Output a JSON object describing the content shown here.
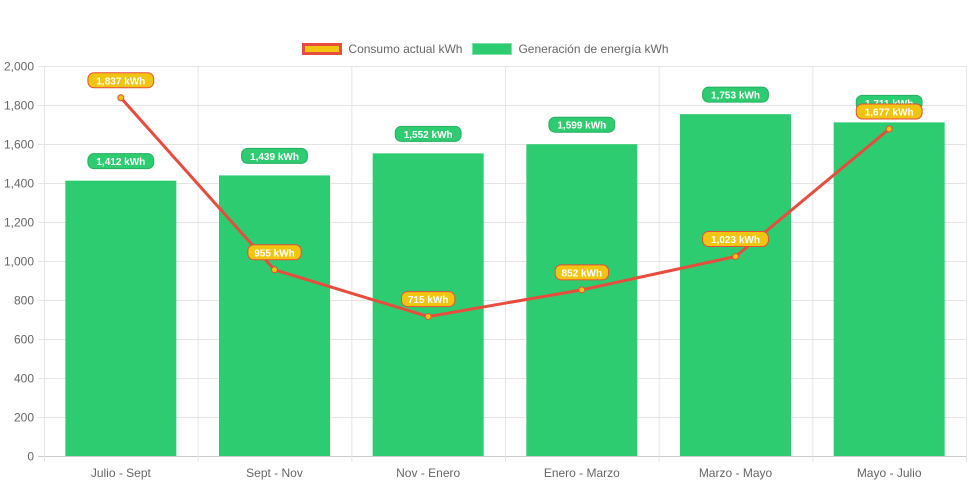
{
  "chart_data": {
    "type": "bar",
    "title": "",
    "categories": [
      "Julio - Sept",
      "Sept - Nov",
      "Nov - Enero",
      "Enero - Marzo",
      "Marzo - Mayo",
      "Mayo - Julio"
    ],
    "series": [
      {
        "name": "Consumo actual kWh",
        "type": "line",
        "values": [
          1837,
          955,
          715,
          852,
          1023,
          1677
        ],
        "labels": [
          "1,837 kWh",
          "955 kWh",
          "715 kWh",
          "852 kWh",
          "1,023 kWh",
          "1,677 kWh"
        ],
        "color": "#e74c3c",
        "fill": "#f1c40f"
      },
      {
        "name": "Generación de energía kWh",
        "type": "bar",
        "values": [
          1412,
          1439,
          1552,
          1599,
          1753,
          1711
        ],
        "labels": [
          "1,412 kWh",
          "1,439 kWh",
          "1,552 kWh",
          "1,599 kWh",
          "1,753 kWh",
          "1,711 kWh"
        ],
        "color": "#2ecc71"
      }
    ],
    "ylim": [
      0,
      2000
    ],
    "yticks": [
      "0",
      "200",
      "400",
      "600",
      "800",
      "1,000",
      "1,200",
      "1,400",
      "1,600",
      "1,800",
      "2,000"
    ],
    "grid": true,
    "legend": "top-center"
  }
}
